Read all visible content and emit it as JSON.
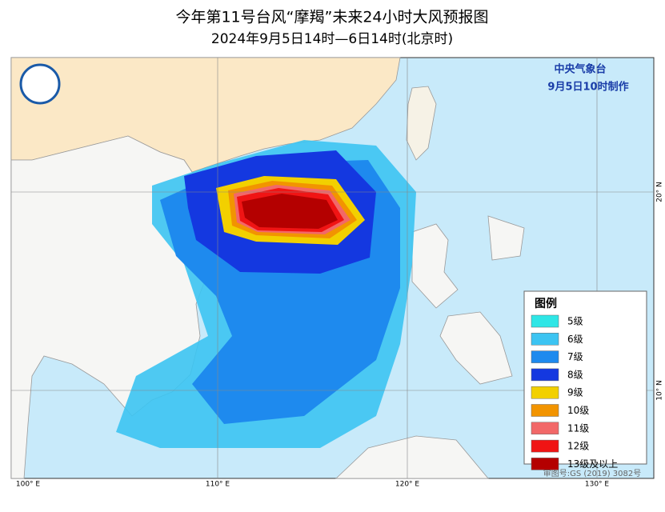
{
  "header": {
    "title": "今年第11号台风“摩羯”未来24小时大风预报图",
    "subtitle": "2024年9月5日14时—6日14时(北京时)"
  },
  "issuer": {
    "agency": "中央气象台",
    "issued": "9月5日10时制作"
  },
  "legend": {
    "title": "图例",
    "items": [
      {
        "label": "5级",
        "color": "#2ee6e6"
      },
      {
        "label": "6级",
        "color": "#3cc4f2"
      },
      {
        "label": "7级",
        "color": "#1e8aee"
      },
      {
        "label": "8级",
        "color": "#1438e0"
      },
      {
        "label": "9级",
        "color": "#f2d000"
      },
      {
        "label": "10级",
        "color": "#f29400"
      },
      {
        "label": "11级",
        "color": "#f26868"
      },
      {
        "label": "12级",
        "color": "#f01414"
      },
      {
        "label": "13级及以上",
        "color": "#b40000"
      }
    ]
  },
  "axes": {
    "longitudes": [
      "100° E",
      "110° E",
      "120° E",
      "130° E"
    ],
    "latitudes": [
      "20° N",
      "10° N"
    ]
  },
  "approval": "审图号:GS (2019) 3082号"
}
